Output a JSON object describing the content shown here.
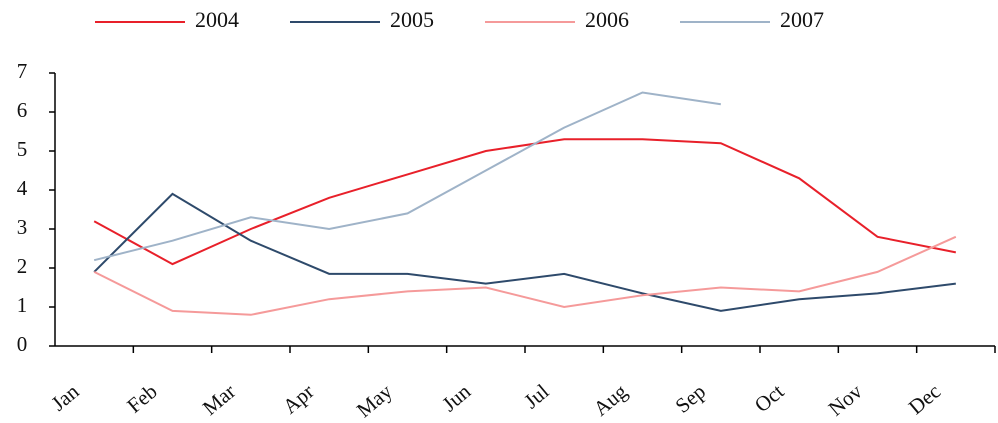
{
  "chart_data": {
    "type": "line",
    "categories": [
      "Jan",
      "Feb",
      "Mar",
      "Apr",
      "May",
      "Jun",
      "Jul",
      "Aug",
      "Sep",
      "Oct",
      "Nov",
      "Dec"
    ],
    "series": [
      {
        "name": "2004",
        "color": "#e8202a",
        "values": [
          3.2,
          2.1,
          3.0,
          3.8,
          4.4,
          5.0,
          5.3,
          5.3,
          5.2,
          4.3,
          2.8,
          2.4
        ]
      },
      {
        "name": "2005",
        "color": "#2e4a6b",
        "values": [
          1.9,
          3.9,
          2.7,
          1.85,
          1.85,
          1.6,
          1.85,
          1.35,
          0.9,
          1.2,
          1.35,
          1.6
        ]
      },
      {
        "name": "2006",
        "color": "#f59a9a",
        "values": [
          1.9,
          0.9,
          0.8,
          1.2,
          1.4,
          1.5,
          1.0,
          1.3,
          1.5,
          1.4,
          1.9,
          2.8
        ]
      },
      {
        "name": "2007",
        "color": "#9fb3c8",
        "values": [
          2.2,
          2.7,
          3.3,
          3.0,
          3.4,
          4.5,
          5.6,
          6.5,
          6.2,
          null,
          null,
          null
        ]
      }
    ],
    "ylim": [
      0,
      7
    ],
    "yticks": [
      0,
      1,
      2,
      3,
      4,
      5,
      6,
      7
    ],
    "legend": "top"
  }
}
